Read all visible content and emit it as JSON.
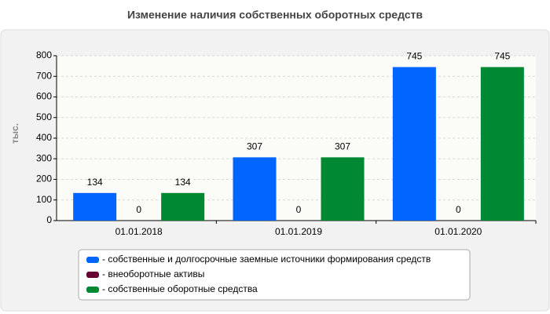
{
  "chart_data": {
    "type": "bar",
    "title": "Изменение наличия собственных оборотных средств",
    "y_label": "тыс.",
    "categories": [
      "01.01.2018",
      "01.01.2019",
      "01.01.2020"
    ],
    "series": [
      {
        "name": "- собственные и долгосрочные заемные источники формирования средств",
        "color": "#0066ff",
        "values": [
          134,
          307,
          745
        ]
      },
      {
        "name": "- внеоборотные активы",
        "color": "#660033",
        "values": [
          0,
          0,
          0
        ]
      },
      {
        "name": "- собственные оборотные средства",
        "color": "#008833",
        "values": [
          134,
          307,
          745
        ]
      }
    ],
    "ylim": [
      0,
      800
    ],
    "yticks": [
      0,
      100,
      200,
      300,
      400,
      500,
      600,
      700,
      800
    ],
    "grid": true
  }
}
